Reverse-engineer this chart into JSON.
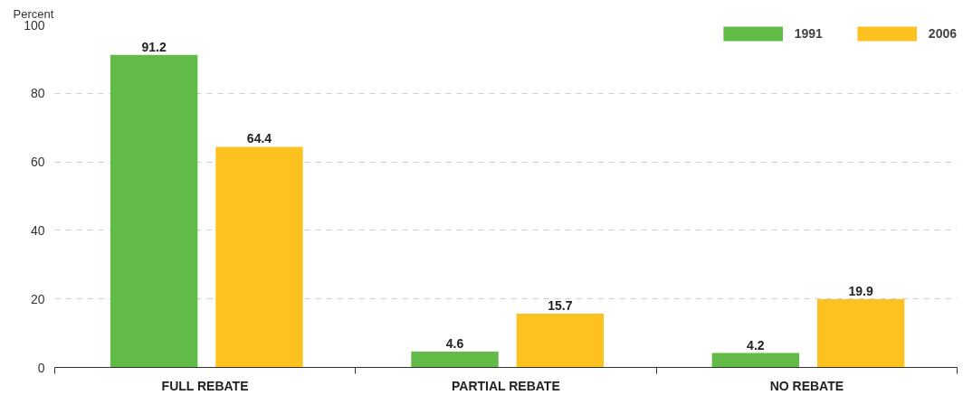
{
  "chart_data": {
    "type": "bar",
    "ylabel": "Percent",
    "categories": [
      "FULL REBATE",
      "PARTIAL REBATE",
      "NO REBATE"
    ],
    "series": [
      {
        "name": "1991",
        "color": "#62bb46",
        "values": [
          91.2,
          4.6,
          4.2
        ]
      },
      {
        "name": "2006",
        "color": "#fdc220",
        "values": [
          64.4,
          15.7,
          19.9
        ]
      }
    ],
    "ylim": [
      0,
      100
    ],
    "yticks": [
      0,
      20,
      40,
      60,
      80,
      100
    ],
    "grid": "y",
    "legend": "top right",
    "data_labels": true
  }
}
